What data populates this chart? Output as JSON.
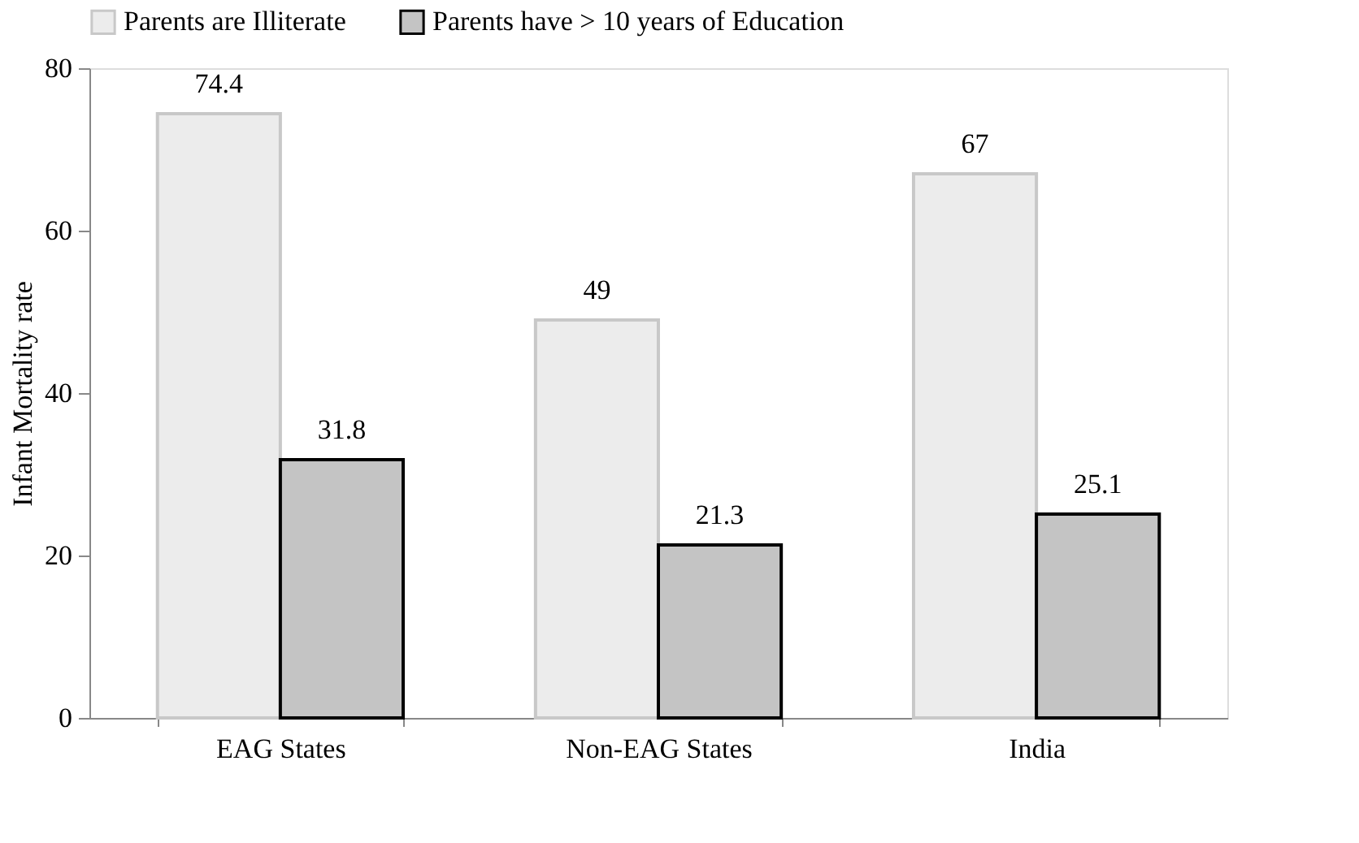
{
  "chart_data": {
    "type": "bar",
    "ylabel": "Infant Mortality rate",
    "categories": [
      "EAG States",
      "Non-EAG States",
      "India"
    ],
    "series": [
      {
        "name": "Parents are Illiterate",
        "color": "#ececec",
        "values": [
          74.4,
          49,
          67
        ]
      },
      {
        "name": "Parents have > 10 years of Education",
        "color": "#c4c4c4",
        "values": [
          31.8,
          21.3,
          25.1
        ]
      }
    ],
    "ylim": [
      0,
      80
    ],
    "yticks": [
      0,
      20,
      40,
      60,
      80
    ],
    "data_labels": true,
    "grid": false,
    "legend": "top"
  }
}
